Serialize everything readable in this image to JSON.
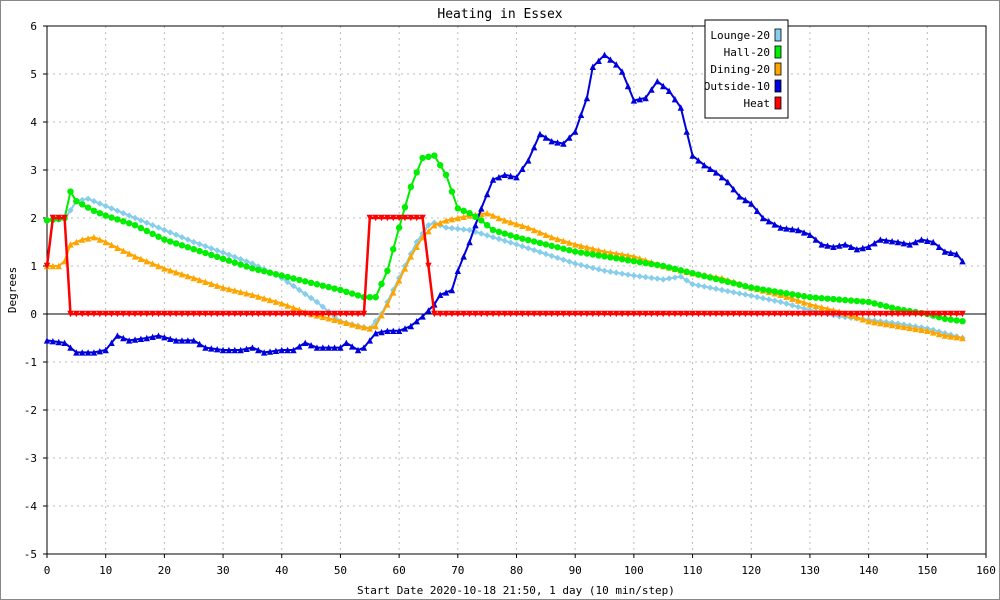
{
  "chart_data": {
    "type": "line",
    "title": "Heating in Essex",
    "xlabel": "Start Date 2020-10-18 21:50, 1 day (10 min/step)",
    "ylabel": "Degrees",
    "xlim": [
      0,
      160
    ],
    "ylim": [
      -5,
      6
    ],
    "xticks": [
      0,
      10,
      20,
      30,
      40,
      50,
      60,
      70,
      80,
      90,
      100,
      110,
      120,
      130,
      140,
      150,
      160
    ],
    "yticks": [
      -5,
      -4,
      -3,
      -2,
      -1,
      0,
      1,
      2,
      3,
      4,
      5,
      6
    ],
    "grid": true,
    "legend": "top-right",
    "series": [
      {
        "name": "Lounge-20",
        "color": "#87ceeb",
        "marker": "diamond",
        "points": [
          [
            0,
            1.95
          ],
          [
            3,
            1.97
          ],
          [
            5,
            2.35
          ],
          [
            7,
            2.4
          ],
          [
            10,
            2.25
          ],
          [
            15,
            2.0
          ],
          [
            20,
            1.75
          ],
          [
            25,
            1.5
          ],
          [
            30,
            1.28
          ],
          [
            35,
            1.05
          ],
          [
            40,
            0.75
          ],
          [
            43,
            0.5
          ],
          [
            46,
            0.25
          ],
          [
            48,
            0.05
          ],
          [
            50,
            -0.15
          ],
          [
            53,
            -0.25
          ],
          [
            55,
            -0.3
          ],
          [
            57,
            0.0
          ],
          [
            59,
            0.5
          ],
          [
            61,
            1.0
          ],
          [
            63,
            1.5
          ],
          [
            65,
            1.85
          ],
          [
            66,
            1.9
          ],
          [
            68,
            1.8
          ],
          [
            72,
            1.75
          ],
          [
            76,
            1.6
          ],
          [
            80,
            1.45
          ],
          [
            85,
            1.25
          ],
          [
            90,
            1.05
          ],
          [
            95,
            0.9
          ],
          [
            100,
            0.8
          ],
          [
            105,
            0.72
          ],
          [
            108,
            0.78
          ],
          [
            110,
            0.62
          ],
          [
            115,
            0.5
          ],
          [
            120,
            0.38
          ],
          [
            125,
            0.25
          ],
          [
            130,
            0.08
          ],
          [
            135,
            -0.05
          ],
          [
            140,
            -0.12
          ],
          [
            145,
            -0.2
          ],
          [
            150,
            -0.3
          ],
          [
            153,
            -0.4
          ],
          [
            156,
            -0.5
          ]
        ]
      },
      {
        "name": "Hall-20",
        "color": "#00ee00",
        "marker": "circle",
        "points": [
          [
            0,
            1.95
          ],
          [
            3,
            2.0
          ],
          [
            4,
            2.55
          ],
          [
            5,
            2.35
          ],
          [
            8,
            2.15
          ],
          [
            10,
            2.05
          ],
          [
            15,
            1.85
          ],
          [
            20,
            1.55
          ],
          [
            25,
            1.35
          ],
          [
            30,
            1.15
          ],
          [
            35,
            0.95
          ],
          [
            40,
            0.8
          ],
          [
            45,
            0.65
          ],
          [
            50,
            0.5
          ],
          [
            54,
            0.35
          ],
          [
            56,
            0.35
          ],
          [
            58,
            0.9
          ],
          [
            60,
            1.8
          ],
          [
            62,
            2.65
          ],
          [
            64,
            3.25
          ],
          [
            66,
            3.3
          ],
          [
            68,
            2.9
          ],
          [
            70,
            2.2
          ],
          [
            72,
            2.1
          ],
          [
            74,
            1.95
          ],
          [
            76,
            1.75
          ],
          [
            80,
            1.6
          ],
          [
            85,
            1.45
          ],
          [
            90,
            1.3
          ],
          [
            95,
            1.2
          ],
          [
            100,
            1.1
          ],
          [
            105,
            1.0
          ],
          [
            110,
            0.85
          ],
          [
            115,
            0.7
          ],
          [
            120,
            0.55
          ],
          [
            125,
            0.45
          ],
          [
            130,
            0.35
          ],
          [
            135,
            0.3
          ],
          [
            140,
            0.25
          ],
          [
            145,
            0.1
          ],
          [
            150,
            0.0
          ],
          [
            153,
            -0.1
          ],
          [
            156,
            -0.15
          ]
        ]
      },
      {
        "name": "Dining-20",
        "color": "#ffa500",
        "marker": "triangle",
        "points": [
          [
            0,
            1.0
          ],
          [
            2,
            1.0
          ],
          [
            3,
            1.1
          ],
          [
            4,
            1.45
          ],
          [
            6,
            1.55
          ],
          [
            8,
            1.6
          ],
          [
            10,
            1.5
          ],
          [
            15,
            1.2
          ],
          [
            20,
            0.95
          ],
          [
            25,
            0.75
          ],
          [
            30,
            0.55
          ],
          [
            35,
            0.4
          ],
          [
            40,
            0.22
          ],
          [
            45,
            0.0
          ],
          [
            50,
            -0.15
          ],
          [
            53,
            -0.25
          ],
          [
            55,
            -0.3
          ],
          [
            56,
            -0.25
          ],
          [
            58,
            0.2
          ],
          [
            60,
            0.7
          ],
          [
            62,
            1.2
          ],
          [
            64,
            1.6
          ],
          [
            66,
            1.85
          ],
          [
            68,
            1.95
          ],
          [
            72,
            2.05
          ],
          [
            75,
            2.1
          ],
          [
            78,
            1.95
          ],
          [
            82,
            1.8
          ],
          [
            86,
            1.6
          ],
          [
            90,
            1.45
          ],
          [
            95,
            1.3
          ],
          [
            100,
            1.2
          ],
          [
            105,
            1.0
          ],
          [
            110,
            0.85
          ],
          [
            115,
            0.75
          ],
          [
            120,
            0.55
          ],
          [
            125,
            0.4
          ],
          [
            130,
            0.2
          ],
          [
            135,
            0.05
          ],
          [
            140,
            -0.15
          ],
          [
            145,
            -0.25
          ],
          [
            150,
            -0.35
          ],
          [
            153,
            -0.45
          ],
          [
            156,
            -0.5
          ]
        ]
      },
      {
        "name": "Outside-10",
        "color": "#0000dd",
        "marker": "triangle",
        "points": [
          [
            0,
            -0.55
          ],
          [
            3,
            -0.6
          ],
          [
            5,
            -0.8
          ],
          [
            8,
            -0.8
          ],
          [
            10,
            -0.75
          ],
          [
            12,
            -0.45
          ],
          [
            14,
            -0.55
          ],
          [
            17,
            -0.5
          ],
          [
            19,
            -0.45
          ],
          [
            22,
            -0.55
          ],
          [
            25,
            -0.55
          ],
          [
            27,
            -0.7
          ],
          [
            30,
            -0.75
          ],
          [
            33,
            -0.75
          ],
          [
            35,
            -0.7
          ],
          [
            37,
            -0.8
          ],
          [
            40,
            -0.75
          ],
          [
            42,
            -0.75
          ],
          [
            44,
            -0.6
          ],
          [
            46,
            -0.7
          ],
          [
            50,
            -0.7
          ],
          [
            51,
            -0.6
          ],
          [
            53,
            -0.75
          ],
          [
            54,
            -0.7
          ],
          [
            56,
            -0.4
          ],
          [
            58,
            -0.35
          ],
          [
            60,
            -0.35
          ],
          [
            62,
            -0.25
          ],
          [
            64,
            -0.05
          ],
          [
            66,
            0.2
          ],
          [
            67,
            0.4
          ],
          [
            69,
            0.5
          ],
          [
            70,
            0.9
          ],
          [
            72,
            1.5
          ],
          [
            74,
            2.2
          ],
          [
            76,
            2.8
          ],
          [
            78,
            2.9
          ],
          [
            80,
            2.85
          ],
          [
            82,
            3.2
          ],
          [
            84,
            3.75
          ],
          [
            86,
            3.6
          ],
          [
            88,
            3.55
          ],
          [
            90,
            3.8
          ],
          [
            92,
            4.5
          ],
          [
            93,
            5.15
          ],
          [
            95,
            5.4
          ],
          [
            97,
            5.2
          ],
          [
            98,
            5.05
          ],
          [
            99,
            4.75
          ],
          [
            100,
            4.45
          ],
          [
            102,
            4.5
          ],
          [
            104,
            4.85
          ],
          [
            106,
            4.65
          ],
          [
            108,
            4.3
          ],
          [
            110,
            3.3
          ],
          [
            112,
            3.1
          ],
          [
            114,
            2.95
          ],
          [
            116,
            2.75
          ],
          [
            118,
            2.45
          ],
          [
            120,
            2.3
          ],
          [
            122,
            2.0
          ],
          [
            125,
            1.8
          ],
          [
            128,
            1.75
          ],
          [
            130,
            1.65
          ],
          [
            132,
            1.45
          ],
          [
            134,
            1.4
          ],
          [
            136,
            1.45
          ],
          [
            138,
            1.35
          ],
          [
            140,
            1.4
          ],
          [
            142,
            1.55
          ],
          [
            145,
            1.5
          ],
          [
            147,
            1.45
          ],
          [
            149,
            1.55
          ],
          [
            151,
            1.5
          ],
          [
            153,
            1.3
          ],
          [
            155,
            1.25
          ],
          [
            156,
            1.1
          ]
        ]
      },
      {
        "name": "Heat",
        "color": "#ff0000",
        "marker": "triangle-down",
        "points": [
          [
            0,
            1.0
          ],
          [
            1,
            2.0
          ],
          [
            2,
            2.0
          ],
          [
            3,
            2.0
          ],
          [
            4,
            0.0
          ],
          [
            10,
            0.0
          ],
          [
            20,
            0.0
          ],
          [
            30,
            0.0
          ],
          [
            40,
            0.0
          ],
          [
            50,
            0.0
          ],
          [
            54,
            0.0
          ],
          [
            55,
            2.0
          ],
          [
            60,
            2.0
          ],
          [
            64,
            2.0
          ],
          [
            66,
            0.0
          ],
          [
            70,
            0.0
          ],
          [
            80,
            0.0
          ],
          [
            90,
            0.0
          ],
          [
            100,
            0.0
          ],
          [
            110,
            0.0
          ],
          [
            120,
            0.0
          ],
          [
            130,
            0.0
          ],
          [
            140,
            0.0
          ],
          [
            150,
            0.0
          ],
          [
            156,
            0.0
          ]
        ]
      }
    ]
  }
}
